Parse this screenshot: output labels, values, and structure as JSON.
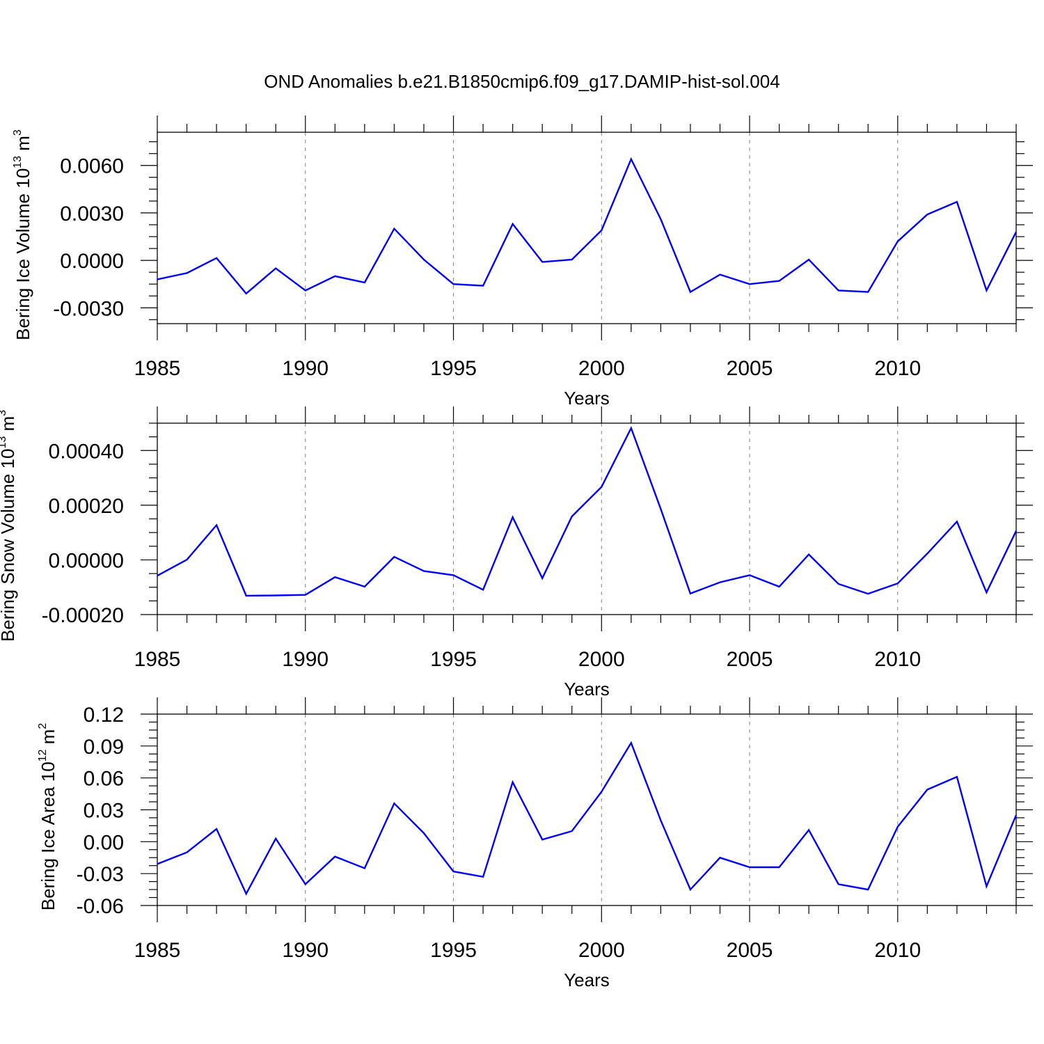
{
  "title": "OND Anomalies b.e21.B1850cmip6.f09_g17.DAMIP-hist-sol.004",
  "colors": {
    "line": "#0000ff",
    "axes": "#000000",
    "grid": "#808080"
  },
  "chart_data": [
    {
      "type": "line",
      "xlabel": "Years",
      "ylabel": {
        "text": "Bering Ice Volume 10",
        "exp": "13",
        "unit": " m",
        "unit_exp": "3"
      },
      "xlim": [
        1985,
        2014
      ],
      "ylim": [
        -0.004,
        0.0081
      ],
      "xticks": [
        1985,
        1990,
        1995,
        2000,
        2005,
        2010
      ],
      "xtick_labels": [
        "1985",
        "1990",
        "1995",
        "2000",
        "2005",
        "2010"
      ],
      "yticks": [
        -0.003,
        0,
        0.003,
        0.006
      ],
      "ytick_labels": [
        "-0.0030",
        "0.0000",
        "0.0030",
        "0.0060"
      ],
      "grid": "x",
      "x": [
        1985,
        1986,
        1987,
        1988,
        1989,
        1990,
        1991,
        1992,
        1993,
        1994,
        1995,
        1996,
        1997,
        1998,
        1999,
        2000,
        2001,
        2002,
        2003,
        2004,
        2005,
        2006,
        2007,
        2008,
        2009,
        2010,
        2011,
        2012,
        2013,
        2014
      ],
      "values": [
        -0.0012,
        -0.0008,
        0.00015,
        -0.0021,
        -0.0005,
        -0.0019,
        -0.001,
        -0.0014,
        0.002,
        5e-05,
        -0.0015,
        -0.0016,
        0.0023,
        -0.0001,
        5e-05,
        0.0019,
        0.0064,
        0.0026,
        -0.002,
        -0.0009,
        -0.0015,
        -0.0013,
        5e-05,
        -0.0019,
        -0.002,
        0.0012,
        0.0029,
        0.0037,
        -0.0019,
        0.0018
      ]
    },
    {
      "type": "line",
      "xlabel": "Years",
      "ylabel": {
        "text": "Bering Snow Volume 10",
        "exp": "13",
        "unit": " m",
        "unit_exp": "3"
      },
      "xlim": [
        1985,
        2014
      ],
      "ylim": [
        -0.0002,
        0.0005
      ],
      "xticks": [
        1985,
        1990,
        1995,
        2000,
        2005,
        2010
      ],
      "xtick_labels": [
        "1985",
        "1990",
        "1995",
        "2000",
        "2005",
        "2010"
      ],
      "yticks": [
        -0.0002,
        0,
        0.0002,
        0.0004
      ],
      "ytick_labels": [
        "-0.00020",
        "0.00000",
        "0.00020",
        "0.00040"
      ],
      "grid": "x",
      "x": [
        1985,
        1986,
        1987,
        1988,
        1989,
        1990,
        1991,
        1992,
        1993,
        1994,
        1995,
        1996,
        1997,
        1998,
        1999,
        2000,
        2001,
        2002,
        2003,
        2004,
        2005,
        2006,
        2007,
        2008,
        2009,
        2010,
        2011,
        2012,
        2013,
        2014
      ],
      "values": [
        -5.8e-05,
        1e-06,
        0.000127,
        -0.000131,
        -0.00013,
        -0.000128,
        -6.3e-05,
        -9.8e-05,
        1.1e-05,
        -4.1e-05,
        -5.6e-05,
        -0.000109,
        0.000156,
        -6.7e-05,
        0.000159,
        0.000267,
        0.000482,
        0.000186,
        -0.000123,
        -8.2e-05,
        -5.6e-05,
        -9.8e-05,
        2e-05,
        -8.8e-05,
        -0.000124,
        -8.6e-05,
        2.3e-05,
        0.00014,
        -0.000119,
        0.000106
      ]
    },
    {
      "type": "line",
      "xlabel": "Years",
      "ylabel": {
        "text": "Bering Ice Area 10",
        "exp": "12",
        "unit": " m",
        "unit_exp": "2"
      },
      "xlim": [
        1985,
        2014
      ],
      "ylim": [
        -0.06,
        0.12
      ],
      "xticks": [
        1985,
        1990,
        1995,
        2000,
        2005,
        2010
      ],
      "xtick_labels": [
        "1985",
        "1990",
        "1995",
        "2000",
        "2005",
        "2010"
      ],
      "yticks": [
        -0.06,
        -0.03,
        0,
        0.03,
        0.06,
        0.09,
        0.12
      ],
      "ytick_labels": [
        "-0.06",
        "-0.03",
        "0.00",
        "0.03",
        "0.06",
        "0.09",
        "0.12"
      ],
      "grid": "x",
      "x": [
        1985,
        1986,
        1987,
        1988,
        1989,
        1990,
        1991,
        1992,
        1993,
        1994,
        1995,
        1996,
        1997,
        1998,
        1999,
        2000,
        2001,
        2002,
        2003,
        2004,
        2005,
        2006,
        2007,
        2008,
        2009,
        2010,
        2011,
        2012,
        2013,
        2014
      ],
      "values": [
        -0.021,
        -0.01,
        0.012,
        -0.049,
        0.003,
        -0.04,
        -0.014,
        -0.025,
        0.036,
        0.008,
        -0.028,
        -0.033,
        0.056,
        0.002,
        0.01,
        0.047,
        0.093,
        0.02,
        -0.045,
        -0.015,
        -0.024,
        -0.024,
        0.011,
        -0.04,
        -0.045,
        0.014,
        0.049,
        0.061,
        -0.042,
        0.025
      ]
    }
  ]
}
